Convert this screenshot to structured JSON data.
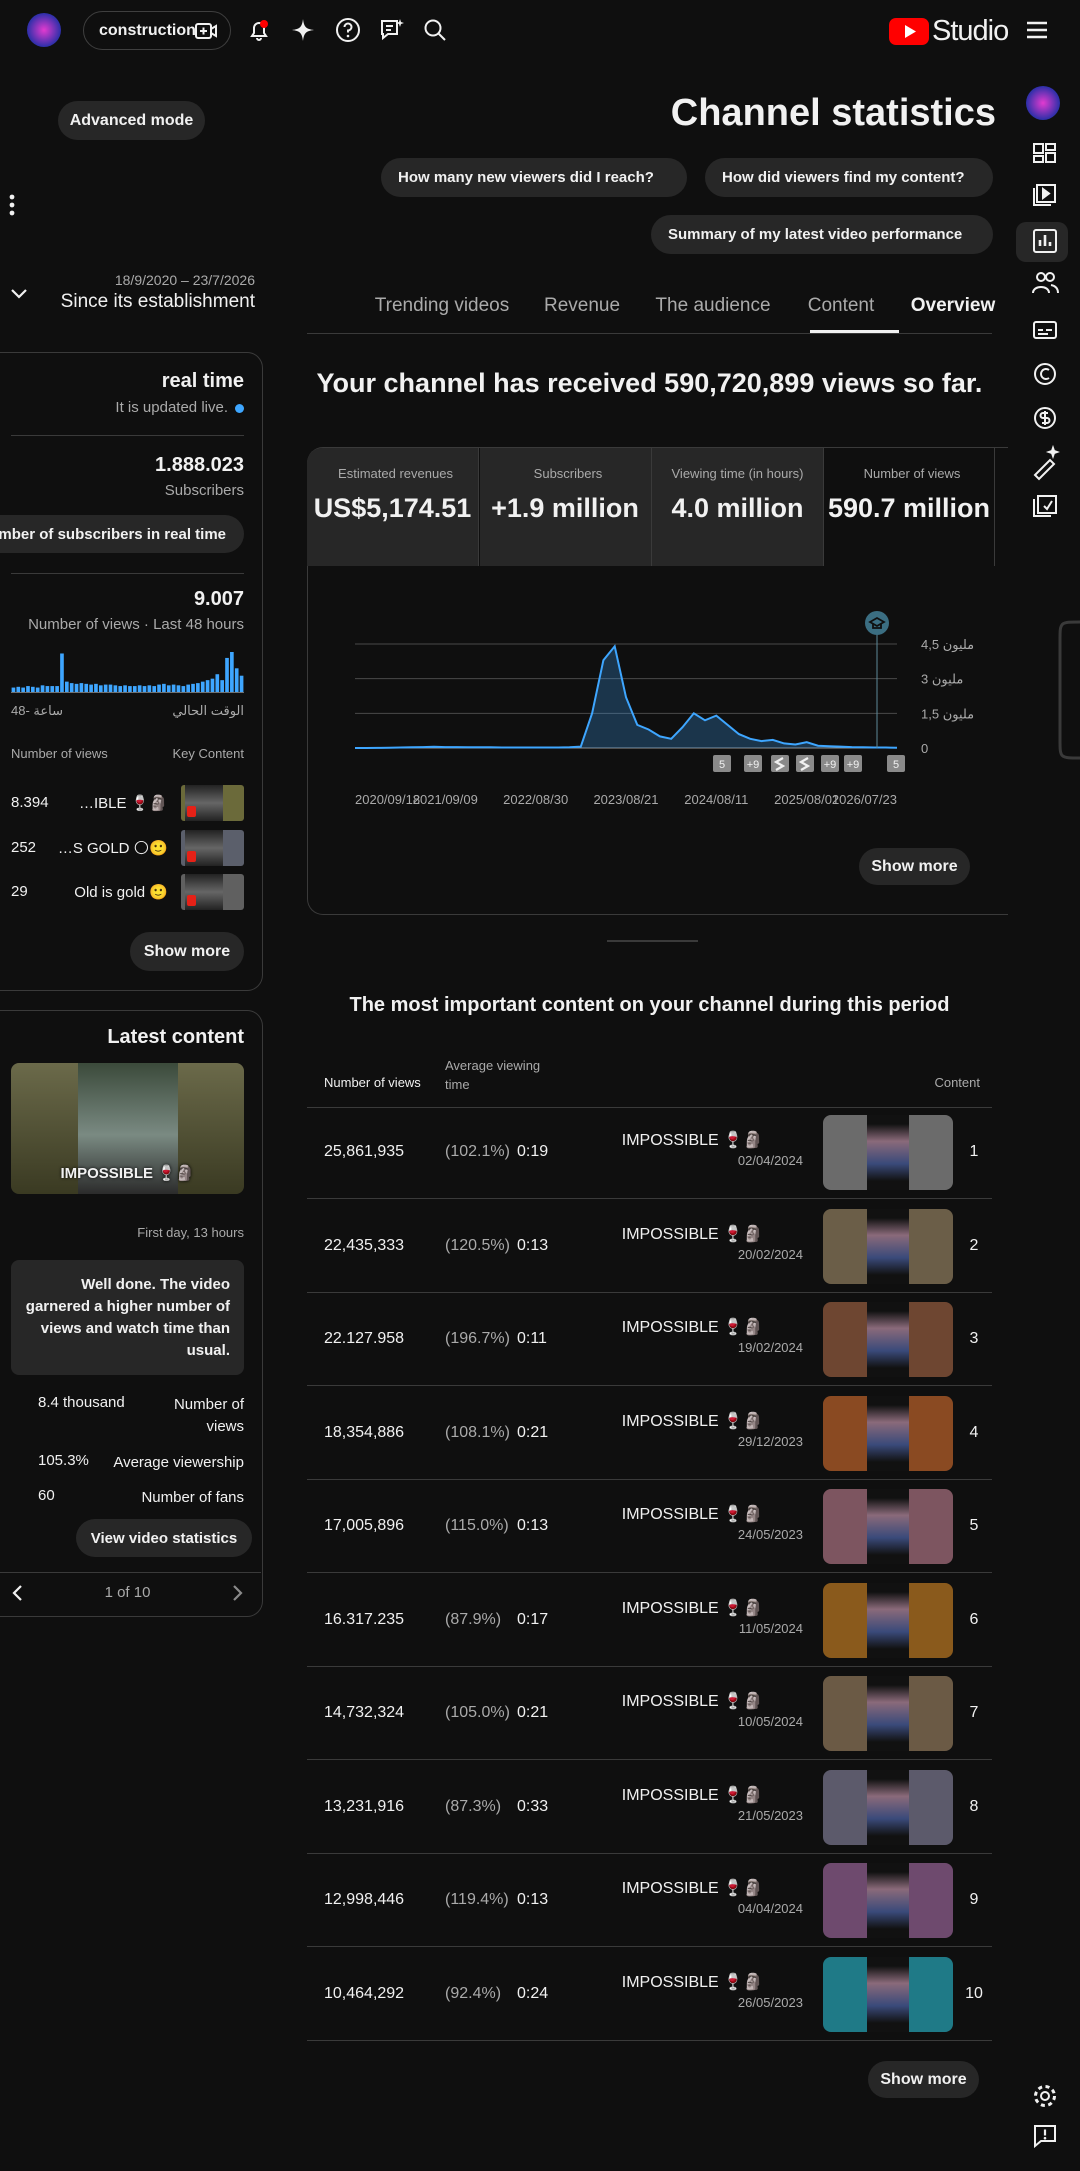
{
  "header": {
    "channel_button": "construction",
    "logo_text": "Studio"
  },
  "advanced_mode": "Advanced mode",
  "title": "Channel statistics",
  "suggestions": [
    "How many new viewers did I reach?",
    "How did viewers find my content?",
    "Summary of my latest video performance"
  ],
  "date_range": "18/9/2020 – 23/7/2026",
  "period": "Since its establishment",
  "tabs": [
    "Trending videos",
    "Revenue",
    "The audience",
    "Content",
    "Overview"
  ],
  "realtime": {
    "title": "real time",
    "subtitle": "It is updated live.",
    "subscribers": "1.888.023",
    "subscribers_label": "Subscribers",
    "subscribers_button": "Number of subscribers in real time",
    "views": "9.007",
    "views_label": "Number of views · Last 48 hours",
    "mini_chart": {
      "type": "bar",
      "color": "#3ea6ff",
      "values": [
        30,
        35,
        30,
        40,
        35,
        30,
        45,
        40,
        40,
        40,
        260,
        70,
        60,
        55,
        60,
        55,
        50,
        55,
        45,
        50,
        50,
        45,
        40,
        45,
        40,
        40,
        45,
        40,
        45,
        40,
        50,
        55,
        45,
        50,
        45,
        40,
        50,
        55,
        60,
        70,
        80,
        90,
        120,
        80,
        230,
        270,
        160,
        110
      ],
      "x_labels": [
        "48- ساعة",
        "الوقت الحالي"
      ]
    },
    "table_headers": [
      "Number of views",
      "Key Content"
    ],
    "rows": [
      {
        "views": "8.394",
        "title": "…IBLE 🍷🗿"
      },
      {
        "views": "252",
        "title": "…S GOLD 🌕🙂"
      },
      {
        "views": "29",
        "title": "Old is gold 🙂"
      }
    ],
    "show_more": "Show more"
  },
  "latest": {
    "title": "Latest content",
    "video_title": "IMPOSSIBLE 🍷🗿",
    "age": "First day, 13 hours",
    "message": "Well done. The video garnered a higher number of views and watch time than usual.",
    "stats": [
      {
        "value": "8.4 thousand",
        "label": "Number of views"
      },
      {
        "value": "105.3%",
        "label": "Average viewership"
      },
      {
        "value": "60",
        "label": "Number of fans"
      }
    ],
    "button": "View video statistics",
    "pager": "1 of 10"
  },
  "headline": "Your channel has received 590,720,899 views so far.",
  "metrics": [
    {
      "label": "Estimated revenues",
      "value": "US$5,174.51"
    },
    {
      "label": "Subscribers",
      "value": "+1.9 million"
    },
    {
      "label": "Viewing time (in hours)",
      "value": "4.0 million"
    },
    {
      "label": "Number of views",
      "value": "590.7 million"
    }
  ],
  "views_chart": {
    "type": "line",
    "color": "#3ea6ff",
    "categories": [
      "2020/09/18",
      null,
      null,
      null,
      null,
      null,
      null,
      null,
      "2021/09/09",
      null,
      null,
      null,
      null,
      null,
      null,
      null,
      "2022/08/30",
      null,
      null,
      null,
      null,
      null,
      null,
      null,
      "2023/08/21",
      null,
      null,
      null,
      null,
      null,
      null,
      null,
      "2024/08/11",
      null,
      null,
      null,
      null,
      null,
      null,
      null,
      "2025/08/01",
      null,
      null,
      null,
      null,
      null,
      null,
      null,
      "2026/07/23"
    ],
    "values": [
      0,
      0,
      5000,
      10000,
      20000,
      30000,
      40000,
      50000,
      40000,
      40000,
      30000,
      30000,
      30000,
      20000,
      20000,
      20000,
      20000,
      20000,
      20000,
      30000,
      60000,
      1500000,
      3800000,
      4400000,
      2200000,
      1000000,
      800000,
      500000,
      400000,
      900000,
      1500000,
      1200000,
      1400000,
      1000000,
      600000,
      400000,
      300000,
      350000,
      200000,
      150000,
      250000,
      100000,
      80000,
      60000,
      40000,
      30000,
      20000,
      20000,
      10000
    ],
    "ylim": [
      0,
      4500000
    ],
    "yticks": [
      0,
      {
        "value": 1500000,
        "label": "1,5 مليون"
      },
      {
        "value": 3000000,
        "label": "3 مليون"
      },
      {
        "value": 4500000,
        "label": "4,5 مليون"
      }
    ],
    "grid": true,
    "markers": [
      "5",
      "+9",
      "+9",
      "+9",
      "5"
    ]
  },
  "chart_show_more": "Show more",
  "top_content": {
    "title": "The most important content on your channel during this period",
    "headers": [
      "Number of views",
      "Average viewing time",
      "Content"
    ],
    "rows": [
      {
        "rank": "1",
        "views": "25,861,935",
        "percent": "(102.1%)",
        "time": "0:19",
        "title": "IMPOSSIBLE 🍷🗿",
        "date": "02/04/2024",
        "thumb_color": "#6b6b6b"
      },
      {
        "rank": "2",
        "views": "22,435,333",
        "percent": "(120.5%)",
        "time": "0:13",
        "title": "IMPOSSIBLE 🍷🗿",
        "date": "20/02/2024",
        "thumb_color": "#6b5e48"
      },
      {
        "rank": "3",
        "views": "22.127.958",
        "percent": "(196.7%)",
        "time": "0:11",
        "title": "IMPOSSIBLE 🍷🗿",
        "date": "19/02/2024",
        "thumb_color": "#6e4631"
      },
      {
        "rank": "4",
        "views": "18,354,886",
        "percent": "(108.1%)",
        "time": "0:21",
        "title": "IMPOSSIBLE 🍷🗿",
        "date": "29/12/2023",
        "thumb_color": "#8a4a22"
      },
      {
        "rank": "5",
        "views": "17,005,896",
        "percent": "(115.0%)",
        "time": "0:13",
        "title": "IMPOSSIBLE 🍷🗿",
        "date": "24/05/2023",
        "thumb_color": "#7d5560"
      },
      {
        "rank": "6",
        "views": "16.317.235",
        "percent": "(87.9%)",
        "time": "0:17",
        "title": "IMPOSSIBLE 🍷🗿",
        "date": "11/05/2024",
        "thumb_color": "#8a5a1c"
      },
      {
        "rank": "7",
        "views": "14,732,324",
        "percent": "(105.0%)",
        "time": "0:21",
        "title": "IMPOSSIBLE 🍷🗿",
        "date": "10/05/2024",
        "thumb_color": "#6b5a45"
      },
      {
        "rank": "8",
        "views": "13,231,916",
        "percent": "(87.3%)",
        "time": "0:33",
        "title": "IMPOSSIBLE 🍷🗿",
        "date": "21/05/2023",
        "thumb_color": "#5c5a6b"
      },
      {
        "rank": "9",
        "views": "12,998,446",
        "percent": "(119.4%)",
        "time": "0:13",
        "title": "IMPOSSIBLE 🍷🗿",
        "date": "04/04/2024",
        "thumb_color": "#6e4a6e"
      },
      {
        "rank": "10",
        "views": "10,464,292",
        "percent": "(92.4%)",
        "time": "0:24",
        "title": "IMPOSSIBLE 🍷🗿",
        "date": "26/05/2023",
        "thumb_color": "#1f7a87"
      }
    ],
    "show_more": "Show more"
  }
}
